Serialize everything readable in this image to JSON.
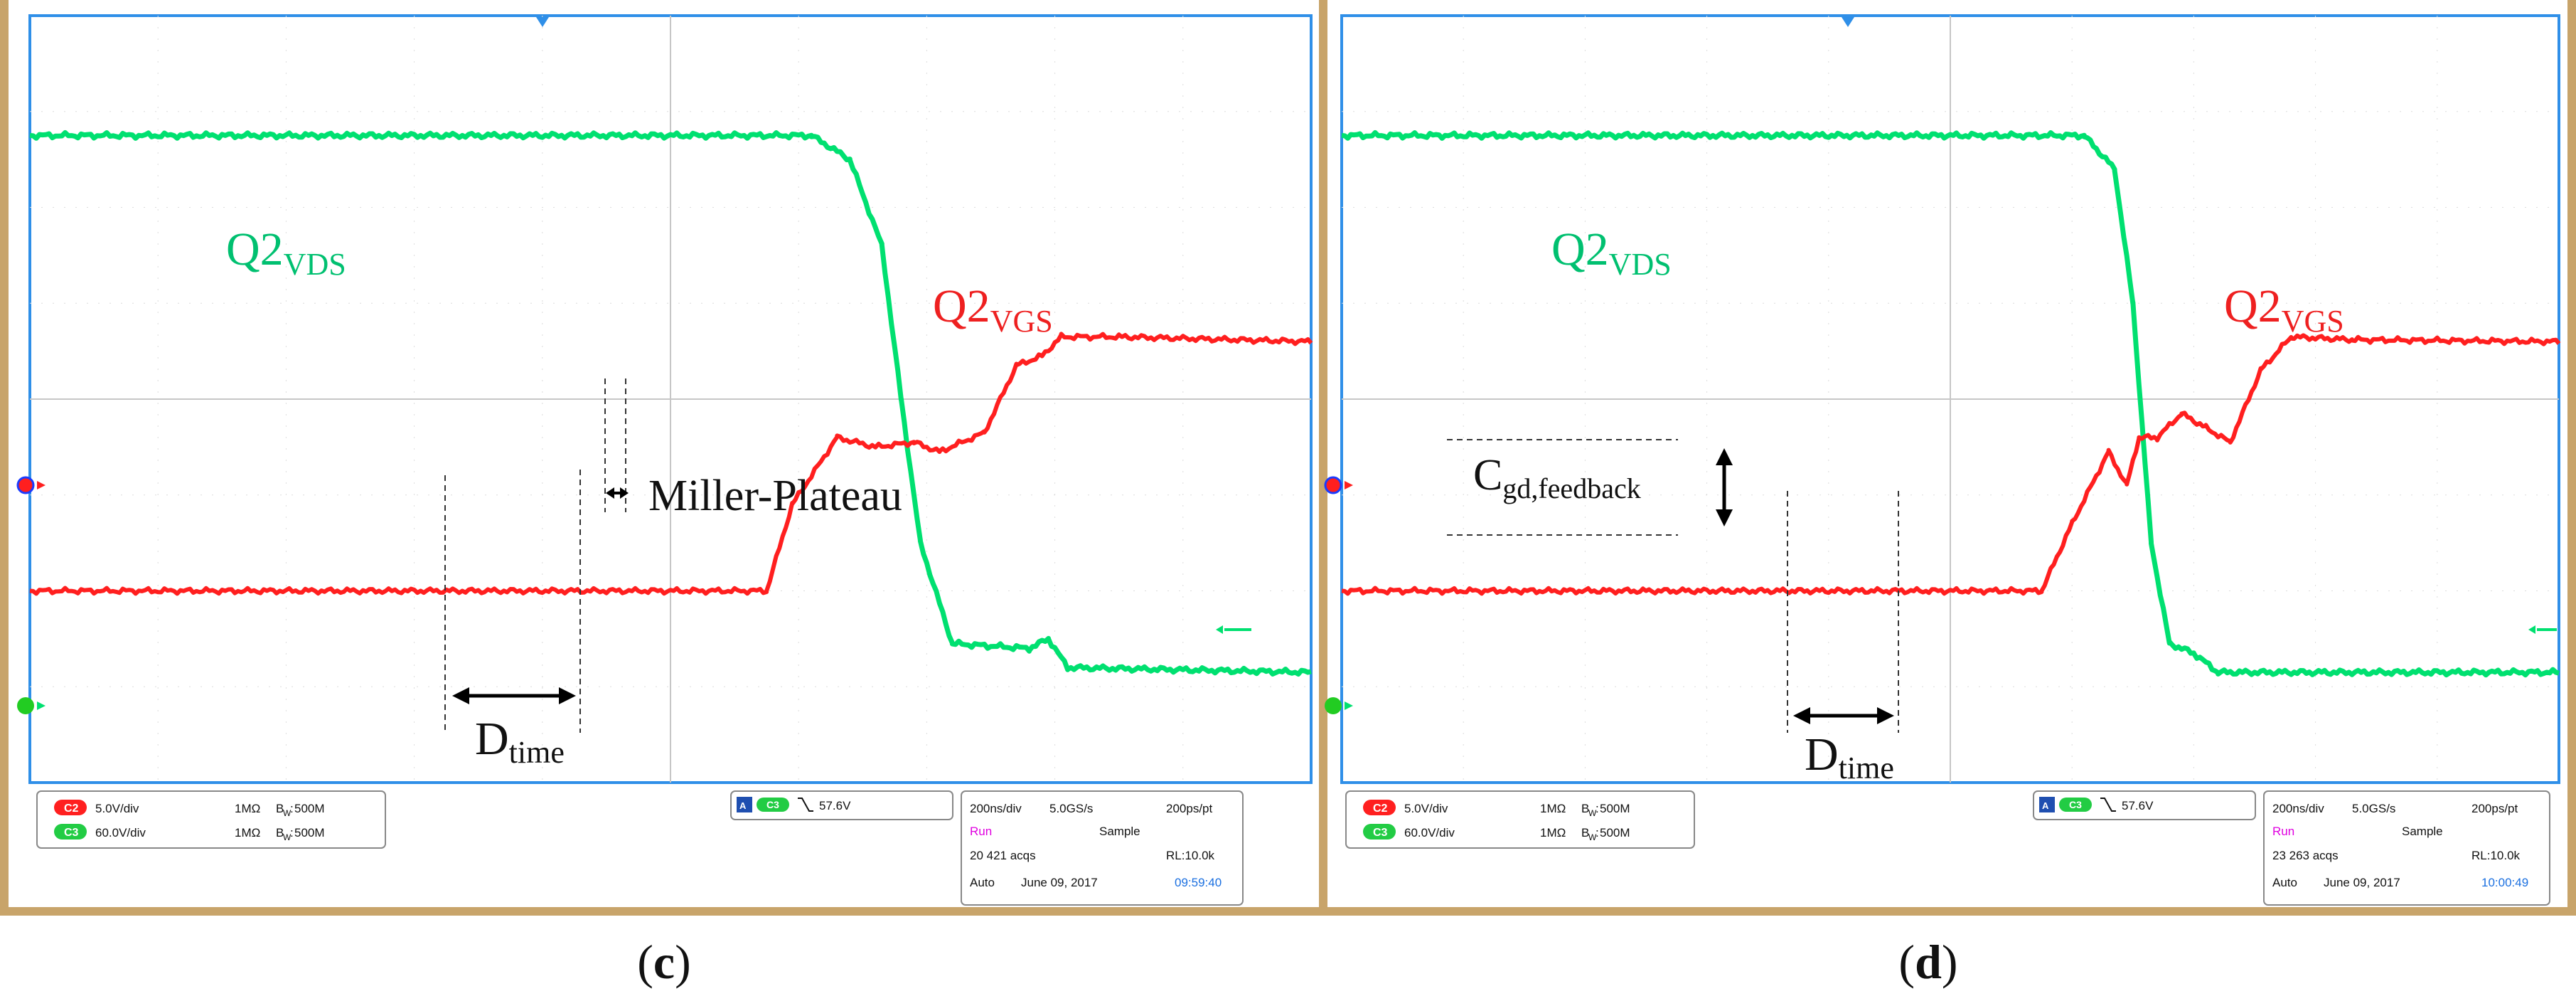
{
  "colors": {
    "ch2": "#ff1f1f",
    "ch3": "#00e070",
    "grid_border": "#2f8fe8",
    "frame": "#c8a46a",
    "label_green": "#00c070",
    "label_red": "#ee2020",
    "blue_text": "#1a6fe0",
    "magenta": "#e000e0"
  },
  "panels": [
    {
      "panel_label": "c",
      "ch2_label": {
        "main": "Q2",
        "sub": "VGS"
      },
      "ch3_label": {
        "main": "Q2",
        "sub": "VDS"
      },
      "annot1": "Miller-Plateau",
      "dtime": {
        "main": "D",
        "sub": "time"
      },
      "status": {
        "ch2_scale": "5.0V/div",
        "ch2_imp": "1MΩ",
        "ch2_bw": "500M",
        "ch3_scale": "60.0V/div",
        "ch3_imp": "1MΩ",
        "ch3_bw": "500M",
        "trigger": "57.6V",
        "timebase": "200ns/div",
        "rate": "5.0GS/s",
        "ptspacing": "200ps/pt",
        "run": "Run",
        "mode": "Sample",
        "acqs": "20 421 acqs",
        "rl": "RL:10.0k",
        "auto": "Auto",
        "date": "June 09, 2017",
        "time": "09:59:40"
      }
    },
    {
      "panel_label": "d",
      "ch2_label": {
        "main": "Q2",
        "sub": "VGS"
      },
      "ch3_label": {
        "main": "Q2",
        "sub": "VDS"
      },
      "annot1": {
        "main": "C",
        "sub": "gd,feedback"
      },
      "dtime": {
        "main": "D",
        "sub": "time"
      },
      "status": {
        "ch2_scale": "5.0V/div",
        "ch2_imp": "1MΩ",
        "ch2_bw": "500M",
        "ch3_scale": "60.0V/div",
        "ch3_imp": "1MΩ",
        "ch3_bw": "500M",
        "trigger": "57.6V",
        "timebase": "200ns/div",
        "rate": "5.0GS/s",
        "ptspacing": "200ps/pt",
        "run": "Run",
        "mode": "Sample",
        "acqs": "23 263 acqs",
        "rl": "RL:10.0k",
        "auto": "Auto",
        "date": "June 09, 2017",
        "time": "10:00:49"
      }
    }
  ],
  "chart_data": [
    {
      "type": "line",
      "title": "",
      "xlim": [
        0,
        10
      ],
      "ylim": [
        -4,
        4
      ],
      "grid": true,
      "series": [
        {
          "name": "Q2VDS",
          "color": "#00e070",
          "points": [
            [
              0,
              2.75
            ],
            [
              6.1,
              2.75
            ],
            [
              6.4,
              2.5
            ],
            [
              6.65,
              1.6
            ],
            [
              6.8,
              0
            ],
            [
              6.95,
              -1.5
            ],
            [
              7.2,
              -2.55
            ],
            [
              7.8,
              -2.6
            ],
            [
              7.95,
              -2.5
            ],
            [
              8.1,
              -2.8
            ],
            [
              10,
              -2.85
            ]
          ]
        },
        {
          "name": "Q2VGS",
          "color": "#ff1f1f",
          "points": [
            [
              0,
              -2.0
            ],
            [
              5.75,
              -2.0
            ],
            [
              5.95,
              -1.1
            ],
            [
              6.3,
              -0.4
            ],
            [
              6.6,
              -0.5
            ],
            [
              6.9,
              -0.45
            ],
            [
              7.1,
              -0.55
            ],
            [
              7.45,
              -0.35
            ],
            [
              7.7,
              0.35
            ],
            [
              7.9,
              0.45
            ],
            [
              8.05,
              0.65
            ],
            [
              8.5,
              0.65
            ],
            [
              10,
              0.6
            ]
          ]
        }
      ]
    },
    {
      "type": "line",
      "title": "",
      "xlim": [
        0,
        10
      ],
      "ylim": [
        -4,
        4
      ],
      "grid": true,
      "series": [
        {
          "name": "Q2VDS",
          "color": "#00e070",
          "points": [
            [
              0,
              2.75
            ],
            [
              6.1,
              2.75
            ],
            [
              6.35,
              2.4
            ],
            [
              6.5,
              1.0
            ],
            [
              6.65,
              -1.5
            ],
            [
              6.8,
              -2.55
            ],
            [
              7.0,
              -2.65
            ],
            [
              7.2,
              -2.85
            ],
            [
              10,
              -2.85
            ]
          ]
        },
        {
          "name": "Q2VGS",
          "color": "#ff1f1f",
          "points": [
            [
              0,
              -2.0
            ],
            [
              5.75,
              -2.0
            ],
            [
              6.0,
              -1.3
            ],
            [
              6.3,
              -0.55
            ],
            [
              6.45,
              -0.9
            ],
            [
              6.55,
              -0.4
            ],
            [
              6.7,
              -0.4
            ],
            [
              6.9,
              -0.15
            ],
            [
              7.1,
              -0.3
            ],
            [
              7.3,
              -0.45
            ],
            [
              7.55,
              0.3
            ],
            [
              7.8,
              0.65
            ],
            [
              8.3,
              0.62
            ],
            [
              10,
              0.6
            ]
          ]
        }
      ]
    }
  ]
}
